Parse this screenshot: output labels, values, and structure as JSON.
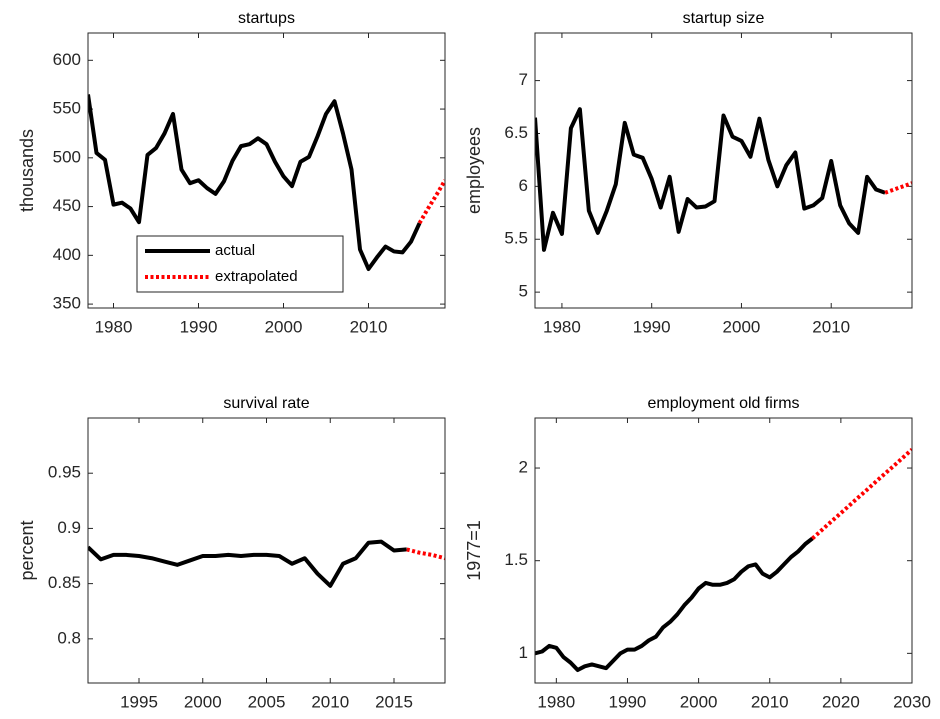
{
  "chart_data": [
    {
      "type": "line",
      "title": "startups",
      "y_label": "thousands",
      "x": [
        1977,
        1978,
        1979,
        1980,
        1981,
        1982,
        1983,
        1984,
        1985,
        1986,
        1987,
        1988,
        1989,
        1990,
        1991,
        1992,
        1993,
        1994,
        1995,
        1996,
        1997,
        1998,
        1999,
        2000,
        2001,
        2002,
        2003,
        2004,
        2005,
        2006,
        2007,
        2008,
        2009,
        2010,
        2011,
        2012,
        2013,
        2014,
        2015,
        2016,
        2017,
        2018,
        2019
      ],
      "series": [
        {
          "name": "actual",
          "color": "#000000",
          "style": "solid",
          "values": [
            565,
            505,
            498,
            452,
            454,
            448,
            434,
            503,
            510,
            525,
            545,
            488,
            474,
            477,
            469,
            463,
            476,
            497,
            512,
            514,
            520,
            514,
            496,
            481,
            471,
            496,
            501,
            522,
            545,
            558,
            525,
            488,
            406,
            386,
            398,
            409,
            404,
            403,
            414,
            433,
            null,
            null,
            null
          ]
        },
        {
          "name": "extrapolated",
          "color": "#ff0000",
          "style": "dotted",
          "values": [
            null,
            null,
            null,
            null,
            null,
            null,
            null,
            null,
            null,
            null,
            null,
            null,
            null,
            null,
            null,
            null,
            null,
            null,
            null,
            null,
            null,
            null,
            null,
            null,
            null,
            null,
            null,
            null,
            null,
            null,
            null,
            null,
            null,
            null,
            null,
            null,
            null,
            null,
            null,
            433,
            448,
            462,
            477
          ]
        }
      ],
      "xlim": [
        1977,
        2019
      ],
      "xticks": [
        1980,
        1990,
        2000,
        2010
      ],
      "ylim": [
        346,
        628
      ],
      "yticks": [
        350,
        400,
        450,
        500,
        550,
        600
      ],
      "legend": "lower left"
    },
    {
      "type": "line",
      "title": "startup size",
      "y_label": "employees",
      "x": [
        1977,
        1978,
        1979,
        1980,
        1981,
        1982,
        1983,
        1984,
        1985,
        1986,
        1987,
        1988,
        1989,
        1990,
        1991,
        1992,
        1993,
        1994,
        1995,
        1996,
        1997,
        1998,
        1999,
        2000,
        2001,
        2002,
        2003,
        2004,
        2005,
        2006,
        2007,
        2008,
        2009,
        2010,
        2011,
        2012,
        2013,
        2014,
        2015,
        2016,
        2017,
        2018,
        2019
      ],
      "series": [
        {
          "color": "#000000",
          "style": "solid",
          "values": [
            6.65,
            5.4,
            5.75,
            5.55,
            6.55,
            6.73,
            5.77,
            5.56,
            5.77,
            6.02,
            6.6,
            6.3,
            6.27,
            6.07,
            5.8,
            6.09,
            5.57,
            5.88,
            5.8,
            5.81,
            5.86,
            6.67,
            6.47,
            6.43,
            6.28,
            6.64,
            6.25,
            6.0,
            6.2,
            6.32,
            5.79,
            5.82,
            5.89,
            6.24,
            5.82,
            5.65,
            5.56,
            6.09,
            5.97,
            5.94,
            null,
            null,
            null
          ]
        },
        {
          "color": "#ff0000",
          "style": "dotted",
          "values": [
            null,
            null,
            null,
            null,
            null,
            null,
            null,
            null,
            null,
            null,
            null,
            null,
            null,
            null,
            null,
            null,
            null,
            null,
            null,
            null,
            null,
            null,
            null,
            null,
            null,
            null,
            null,
            null,
            null,
            null,
            null,
            null,
            null,
            null,
            null,
            null,
            null,
            null,
            null,
            5.94,
            5.97,
            6.0,
            6.03
          ]
        }
      ],
      "xlim": [
        1977,
        2019
      ],
      "xticks": [
        1980,
        1990,
        2000,
        2010
      ],
      "ylim": [
        4.85,
        7.45
      ],
      "yticks": [
        5,
        5.5,
        6,
        6.5,
        7
      ]
    },
    {
      "type": "line",
      "title": "survival rate",
      "y_label": "percent",
      "x": [
        1991,
        1992,
        1993,
        1994,
        1995,
        1996,
        1997,
        1998,
        1999,
        2000,
        2001,
        2002,
        2003,
        2004,
        2005,
        2006,
        2007,
        2008,
        2009,
        2010,
        2011,
        2012,
        2013,
        2014,
        2015,
        2016,
        2017,
        2018,
        2019
      ],
      "series": [
        {
          "color": "#000000",
          "style": "solid",
          "values": [
            0.883,
            0.872,
            0.876,
            0.876,
            0.875,
            0.873,
            0.87,
            0.867,
            0.871,
            0.875,
            0.875,
            0.876,
            0.875,
            0.876,
            0.876,
            0.875,
            0.868,
            0.873,
            0.859,
            0.848,
            0.868,
            0.873,
            0.887,
            0.888,
            0.88,
            0.881,
            null,
            null,
            null
          ]
        },
        {
          "color": "#ff0000",
          "style": "dotted",
          "values": [
            null,
            null,
            null,
            null,
            null,
            null,
            null,
            null,
            null,
            null,
            null,
            null,
            null,
            null,
            null,
            null,
            null,
            null,
            null,
            null,
            null,
            null,
            null,
            null,
            null,
            0.881,
            0.878,
            0.876,
            0.873
          ]
        }
      ],
      "xlim": [
        1991,
        2019
      ],
      "xticks": [
        1995,
        2000,
        2005,
        2010,
        2015
      ],
      "ylim": [
        0.76,
        1.0
      ],
      "yticks": [
        0.8,
        0.85,
        0.9,
        0.95
      ]
    },
    {
      "type": "line",
      "title": "employment old firms",
      "y_label": "1977=1",
      "x": [
        1977,
        1978,
        1979,
        1980,
        1981,
        1982,
        1983,
        1984,
        1985,
        1986,
        1987,
        1988,
        1989,
        1990,
        1991,
        1992,
        1993,
        1994,
        1995,
        1996,
        1997,
        1998,
        1999,
        2000,
        2001,
        2002,
        2003,
        2004,
        2005,
        2006,
        2007,
        2008,
        2009,
        2010,
        2011,
        2012,
        2013,
        2014,
        2015,
        2016,
        2017,
        2018,
        2019,
        2020,
        2021,
        2022,
        2023,
        2024,
        2025,
        2026,
        2027,
        2028,
        2029,
        2030
      ],
      "series": [
        {
          "color": "#000000",
          "style": "solid",
          "values": [
            1.0,
            1.01,
            1.04,
            1.03,
            0.98,
            0.95,
            0.91,
            0.93,
            0.94,
            0.93,
            0.92,
            0.96,
            1.0,
            1.02,
            1.02,
            1.04,
            1.07,
            1.09,
            1.14,
            1.17,
            1.21,
            1.26,
            1.3,
            1.35,
            1.38,
            1.37,
            1.37,
            1.38,
            1.4,
            1.44,
            1.47,
            1.48,
            1.43,
            1.41,
            1.44,
            1.48,
            1.52,
            1.55,
            1.59,
            1.62,
            null,
            null,
            null,
            null,
            null,
            null,
            null,
            null,
            null,
            null,
            null,
            null,
            null,
            null
          ]
        },
        {
          "color": "#ff0000",
          "style": "dotted",
          "values": [
            null,
            null,
            null,
            null,
            null,
            null,
            null,
            null,
            null,
            null,
            null,
            null,
            null,
            null,
            null,
            null,
            null,
            null,
            null,
            null,
            null,
            null,
            null,
            null,
            null,
            null,
            null,
            null,
            null,
            null,
            null,
            null,
            null,
            null,
            null,
            null,
            null,
            null,
            null,
            1.62,
            1.654,
            1.689,
            1.723,
            1.757,
            1.791,
            1.826,
            1.86,
            1.894,
            1.929,
            1.963,
            1.997,
            2.031,
            2.066,
            2.1
          ]
        }
      ],
      "xlim": [
        1977,
        2030
      ],
      "xticks": [
        1980,
        1990,
        2000,
        2010,
        2020,
        2030
      ],
      "ylim": [
        0.84,
        2.27
      ],
      "yticks": [
        1,
        1.5,
        2
      ]
    }
  ]
}
